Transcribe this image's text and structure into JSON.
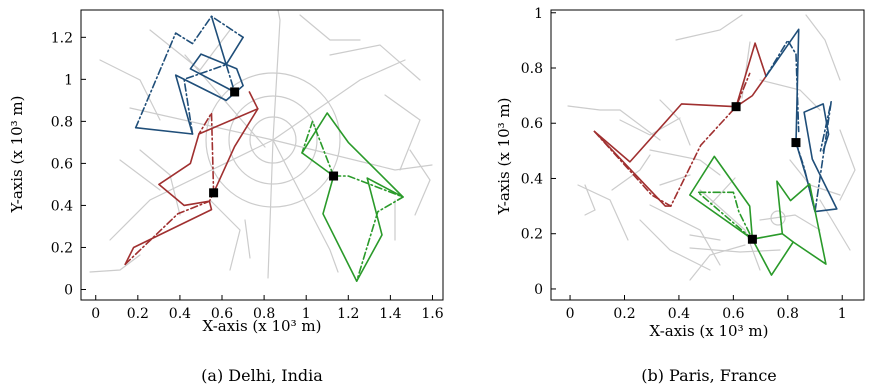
{
  "chart_data": [
    {
      "type": "line",
      "caption": "(a) Delhi, India",
      "xlabel": "X-axis (x 10³ m)",
      "ylabel": "Y-axis (x 10³ m)",
      "xlim": [
        -0.07,
        1.65
      ],
      "ylim": [
        -0.05,
        1.33
      ],
      "xticks": [
        0,
        0.2,
        0.4,
        0.6,
        0.8,
        1,
        1.2,
        1.4,
        1.6
      ],
      "xtick_labels": [
        "0",
        "0.2",
        "0.4",
        "0.6",
        "0.8",
        "1",
        "1.2",
        "1.4",
        "1.6"
      ],
      "yticks": [
        0,
        0.2,
        0.4,
        0.6,
        0.8,
        1,
        1.2
      ],
      "ytick_labels": [
        "0",
        "0.2",
        "0.4",
        "0.6",
        "0.8",
        "1",
        "1.2"
      ],
      "grid": false,
      "colors": {
        "road": "#cccccc",
        "red": "#a03030",
        "blue": "#1f4e79",
        "green": "#2a9a2a",
        "depot": "#000000"
      },
      "depots": [
        [
          0.66,
          0.94
        ],
        [
          0.56,
          0.46
        ],
        [
          1.13,
          0.54
        ]
      ],
      "series": [
        {
          "color": "red",
          "style": "solid",
          "points": [
            [
              0.14,
              0.12
            ],
            [
              0.18,
              0.2
            ],
            [
              0.55,
              0.38
            ],
            [
              0.54,
              0.42
            ],
            [
              0.42,
              0.4
            ],
            [
              0.3,
              0.5
            ],
            [
              0.45,
              0.6
            ],
            [
              0.49,
              0.74
            ],
            [
              0.77,
              0.86
            ],
            [
              0.73,
              0.94
            ]
          ]
        },
        {
          "color": "red",
          "style": "dashdot",
          "points": [
            [
              0.14,
              0.12
            ],
            [
              0.39,
              0.36
            ],
            [
              0.54,
              0.42
            ],
            [
              0.56,
              0.46
            ],
            [
              0.55,
              0.84
            ],
            [
              0.49,
              0.74
            ]
          ]
        },
        {
          "color": "red",
          "style": "solid",
          "points": [
            [
              0.56,
              0.46
            ],
            [
              0.66,
              0.68
            ],
            [
              0.77,
              0.86
            ]
          ]
        },
        {
          "color": "blue",
          "style": "solid",
          "points": [
            [
              0.19,
              0.77
            ],
            [
              0.46,
              0.74
            ],
            [
              0.38,
              1.02
            ],
            [
              0.62,
              0.9
            ],
            [
              0.7,
              0.97
            ],
            [
              0.67,
              1.05
            ],
            [
              0.5,
              1.12
            ],
            [
              0.45,
              1.05
            ],
            [
              0.66,
              0.94
            ]
          ]
        },
        {
          "color": "blue",
          "style": "dashdot",
          "points": [
            [
              0.19,
              0.77
            ],
            [
              0.38,
              1.22
            ],
            [
              0.46,
              1.17
            ],
            [
              0.55,
              1.3
            ],
            [
              0.7,
              1.2
            ]
          ]
        },
        {
          "color": "blue",
          "style": "solid",
          "points": [
            [
              0.55,
              1.3
            ],
            [
              0.62,
              1.07
            ],
            [
              0.7,
              1.2
            ]
          ]
        },
        {
          "color": "blue",
          "style": "dashdot",
          "points": [
            [
              0.46,
              0.74
            ],
            [
              0.42,
              1.0
            ],
            [
              0.62,
              1.07
            ],
            [
              0.66,
              0.94
            ]
          ]
        },
        {
          "color": "green",
          "style": "solid",
          "points": [
            [
              1.13,
              0.54
            ],
            [
              0.98,
              0.65
            ],
            [
              1.1,
              0.84
            ],
            [
              1.2,
              0.7
            ],
            [
              1.46,
              0.44
            ],
            [
              1.29,
              0.53
            ],
            [
              1.36,
              0.26
            ],
            [
              1.24,
              0.04
            ],
            [
              1.08,
              0.36
            ],
            [
              1.13,
              0.54
            ]
          ]
        },
        {
          "color": "green",
          "style": "dashdot",
          "points": [
            [
              1.13,
              0.54
            ],
            [
              1.03,
              0.8
            ],
            [
              0.98,
              0.65
            ]
          ]
        },
        {
          "color": "green",
          "style": "dashdot",
          "points": [
            [
              1.13,
              0.54
            ],
            [
              1.2,
              0.54
            ],
            [
              1.46,
              0.44
            ],
            [
              1.34,
              0.37
            ],
            [
              1.24,
              0.04
            ]
          ]
        }
      ]
    },
    {
      "type": "line",
      "caption": "(b) Paris, France",
      "xlabel": "X-axis (x 10³ m)",
      "ylabel": "Y-axis (x 10³ m)",
      "xlim": [
        -0.07,
        1.08
      ],
      "ylim": [
        -0.04,
        1.01
      ],
      "xticks": [
        0,
        0.2,
        0.4,
        0.6,
        0.8,
        1
      ],
      "xtick_labels": [
        "0",
        "0.2",
        "0.4",
        "0.6",
        "0.8",
        "1"
      ],
      "yticks": [
        0,
        0.2,
        0.4,
        0.6,
        0.8,
        1
      ],
      "ytick_labels": [
        "0",
        "0.2",
        "0.4",
        "0.6",
        "0.8",
        "1"
      ],
      "grid": false,
      "colors": {
        "road": "#cccccc",
        "red": "#a03030",
        "blue": "#1f4e79",
        "green": "#2a9a2a",
        "depot": "#000000"
      },
      "depots": [
        [
          0.61,
          0.66
        ],
        [
          0.83,
          0.53
        ],
        [
          0.67,
          0.18
        ]
      ],
      "series": [
        {
          "color": "red",
          "style": "solid",
          "points": [
            [
              0.09,
              0.57
            ],
            [
              0.22,
              0.46
            ],
            [
              0.41,
              0.67
            ],
            [
              0.61,
              0.66
            ],
            [
              0.68,
              0.89
            ],
            [
              0.72,
              0.77
            ],
            [
              0.67,
              0.7
            ],
            [
              0.61,
              0.66
            ]
          ]
        },
        {
          "color": "red",
          "style": "dashdot",
          "points": [
            [
              0.09,
              0.57
            ],
            [
              0.3,
              0.34
            ],
            [
              0.37,
              0.3
            ],
            [
              0.48,
              0.52
            ],
            [
              0.61,
              0.66
            ],
            [
              0.66,
              0.78
            ]
          ]
        },
        {
          "color": "red",
          "style": "solid",
          "points": [
            [
              0.09,
              0.57
            ],
            [
              0.35,
              0.3
            ],
            [
              0.37,
              0.3
            ]
          ]
        },
        {
          "color": "blue",
          "style": "solid",
          "points": [
            [
              0.83,
              0.53
            ],
            [
              0.84,
              0.94
            ],
            [
              0.72,
              0.77
            ]
          ]
        },
        {
          "color": "blue",
          "style": "solid",
          "points": [
            [
              0.83,
              0.53
            ],
            [
              0.87,
              0.4
            ],
            [
              0.9,
              0.28
            ],
            [
              0.98,
              0.29
            ],
            [
              0.89,
              0.47
            ],
            [
              0.86,
              0.64
            ],
            [
              0.93,
              0.67
            ],
            [
              0.95,
              0.56
            ],
            [
              0.93,
              0.5
            ]
          ]
        },
        {
          "color": "blue",
          "style": "dashdot",
          "points": [
            [
              0.72,
              0.77
            ],
            [
              0.8,
              0.9
            ],
            [
              0.83,
              0.85
            ],
            [
              0.84,
              0.57
            ]
          ]
        },
        {
          "color": "blue",
          "style": "dashdot",
          "points": [
            [
              0.83,
              0.53
            ],
            [
              0.86,
              0.44
            ],
            [
              0.9,
              0.28
            ],
            [
              0.96,
              0.68
            ],
            [
              0.92,
              0.5
            ]
          ]
        },
        {
          "color": "green",
          "style": "solid",
          "points": [
            [
              0.67,
              0.18
            ],
            [
              0.44,
              0.34
            ],
            [
              0.53,
              0.48
            ],
            [
              0.66,
              0.3
            ],
            [
              0.67,
              0.18
            ]
          ]
        },
        {
          "color": "green",
          "style": "solid",
          "points": [
            [
              0.67,
              0.18
            ],
            [
              0.78,
              0.2
            ],
            [
              0.76,
              0.39
            ],
            [
              0.81,
              0.32
            ],
            [
              0.88,
              0.38
            ],
            [
              0.94,
              0.09
            ],
            [
              0.82,
              0.17
            ],
            [
              0.78,
              0.2
            ]
          ]
        },
        {
          "color": "green",
          "style": "solid",
          "points": [
            [
              0.67,
              0.18
            ],
            [
              0.74,
              0.05
            ],
            [
              0.82,
              0.17
            ]
          ]
        },
        {
          "color": "green",
          "style": "dashdot",
          "points": [
            [
              0.67,
              0.18
            ],
            [
              0.47,
              0.35
            ],
            [
              0.6,
              0.35
            ],
            [
              0.62,
              0.28
            ],
            [
              0.67,
              0.18
            ]
          ]
        }
      ]
    }
  ]
}
